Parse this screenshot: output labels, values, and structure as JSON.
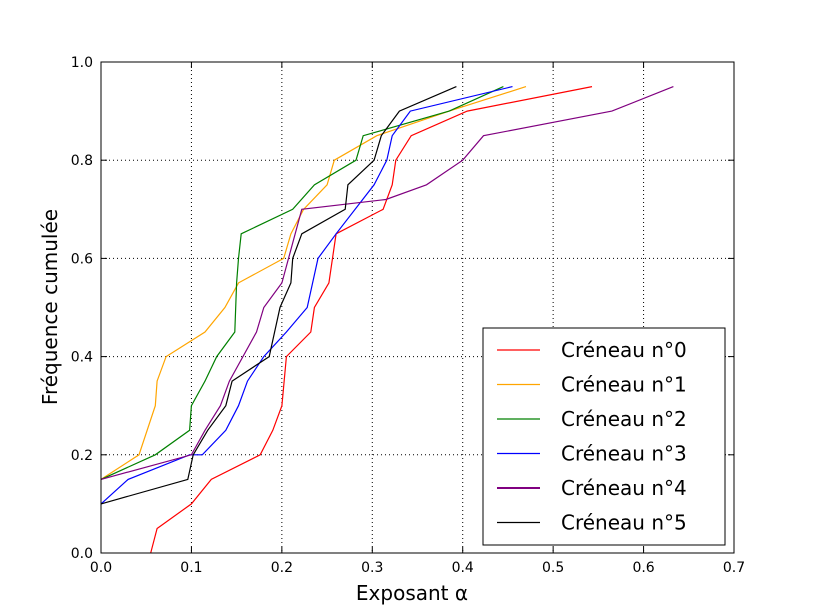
{
  "chart_data": {
    "type": "line",
    "title": "",
    "xlabel": "Exposant α",
    "ylabel": "Fréquence cumulée",
    "xlim": [
      0.0,
      0.7
    ],
    "ylim": [
      0.0,
      1.0
    ],
    "xticks": [
      "0.0",
      "0.1",
      "0.2",
      "0.3",
      "0.4",
      "0.5",
      "0.6",
      "0.7"
    ],
    "yticks": [
      "0.0",
      "0.2",
      "0.4",
      "0.6",
      "0.8",
      "1.0"
    ],
    "grid": true,
    "legend_position": "lower-right",
    "series": [
      {
        "name": "Créneau n°0",
        "color": "#ff0000",
        "points": [
          [
            0.055,
            0.0
          ],
          [
            0.062,
            0.05
          ],
          [
            0.1,
            0.1
          ],
          [
            0.122,
            0.15
          ],
          [
            0.176,
            0.2
          ],
          [
            0.19,
            0.25
          ],
          [
            0.2,
            0.3
          ],
          [
            0.205,
            0.4
          ],
          [
            0.232,
            0.45
          ],
          [
            0.236,
            0.5
          ],
          [
            0.252,
            0.55
          ],
          [
            0.26,
            0.65
          ],
          [
            0.312,
            0.7
          ],
          [
            0.322,
            0.75
          ],
          [
            0.326,
            0.8
          ],
          [
            0.343,
            0.85
          ],
          [
            0.405,
            0.9
          ],
          [
            0.543,
            0.95
          ]
        ]
      },
      {
        "name": "Créneau n°1",
        "color": "#ffa500",
        "points": [
          [
            0.0,
            0.15
          ],
          [
            0.042,
            0.2
          ],
          [
            0.06,
            0.3
          ],
          [
            0.062,
            0.35
          ],
          [
            0.072,
            0.4
          ],
          [
            0.115,
            0.45
          ],
          [
            0.137,
            0.5
          ],
          [
            0.152,
            0.55
          ],
          [
            0.202,
            0.6
          ],
          [
            0.21,
            0.65
          ],
          [
            0.224,
            0.7
          ],
          [
            0.25,
            0.75
          ],
          [
            0.258,
            0.8
          ],
          [
            0.305,
            0.85
          ],
          [
            0.385,
            0.9
          ],
          [
            0.47,
            0.95
          ]
        ]
      },
      {
        "name": "Créneau n°2",
        "color": "#008000",
        "points": [
          [
            0.0,
            0.15
          ],
          [
            0.06,
            0.2
          ],
          [
            0.098,
            0.25
          ],
          [
            0.1,
            0.3
          ],
          [
            0.115,
            0.35
          ],
          [
            0.128,
            0.4
          ],
          [
            0.148,
            0.45
          ],
          [
            0.15,
            0.55
          ],
          [
            0.152,
            0.6
          ],
          [
            0.155,
            0.65
          ],
          [
            0.212,
            0.7
          ],
          [
            0.236,
            0.75
          ],
          [
            0.282,
            0.8
          ],
          [
            0.29,
            0.85
          ],
          [
            0.385,
            0.9
          ],
          [
            0.445,
            0.95
          ]
        ]
      },
      {
        "name": "Créneau n°3",
        "color": "#0000ff",
        "points": [
          [
            0.0,
            0.1
          ],
          [
            0.03,
            0.15
          ],
          [
            0.098,
            0.2
          ],
          [
            0.112,
            0.2
          ],
          [
            0.138,
            0.25
          ],
          [
            0.152,
            0.3
          ],
          [
            0.162,
            0.35
          ],
          [
            0.18,
            0.4
          ],
          [
            0.205,
            0.45
          ],
          [
            0.228,
            0.5
          ],
          [
            0.24,
            0.6
          ],
          [
            0.26,
            0.65
          ],
          [
            0.302,
            0.75
          ],
          [
            0.316,
            0.8
          ],
          [
            0.322,
            0.85
          ],
          [
            0.342,
            0.9
          ],
          [
            0.455,
            0.95
          ]
        ]
      },
      {
        "name": "Créneau n°4",
        "color": "#800080",
        "points": [
          [
            0.0,
            0.15
          ],
          [
            0.1,
            0.2
          ],
          [
            0.115,
            0.25
          ],
          [
            0.132,
            0.3
          ],
          [
            0.142,
            0.35
          ],
          [
            0.172,
            0.45
          ],
          [
            0.18,
            0.5
          ],
          [
            0.2,
            0.55
          ],
          [
            0.222,
            0.7
          ],
          [
            0.315,
            0.72
          ],
          [
            0.36,
            0.75
          ],
          [
            0.4,
            0.8
          ],
          [
            0.423,
            0.85
          ],
          [
            0.565,
            0.9
          ],
          [
            0.633,
            0.95
          ]
        ]
      },
      {
        "name": "Créneau n°5",
        "color": "#000000",
        "points": [
          [
            0.0,
            0.1
          ],
          [
            0.096,
            0.15
          ],
          [
            0.102,
            0.2
          ],
          [
            0.118,
            0.25
          ],
          [
            0.138,
            0.3
          ],
          [
            0.145,
            0.35
          ],
          [
            0.186,
            0.4
          ],
          [
            0.198,
            0.5
          ],
          [
            0.21,
            0.55
          ],
          [
            0.212,
            0.6
          ],
          [
            0.222,
            0.65
          ],
          [
            0.27,
            0.7
          ],
          [
            0.273,
            0.75
          ],
          [
            0.302,
            0.8
          ],
          [
            0.31,
            0.85
          ],
          [
            0.33,
            0.9
          ],
          [
            0.393,
            0.95
          ]
        ]
      }
    ]
  }
}
